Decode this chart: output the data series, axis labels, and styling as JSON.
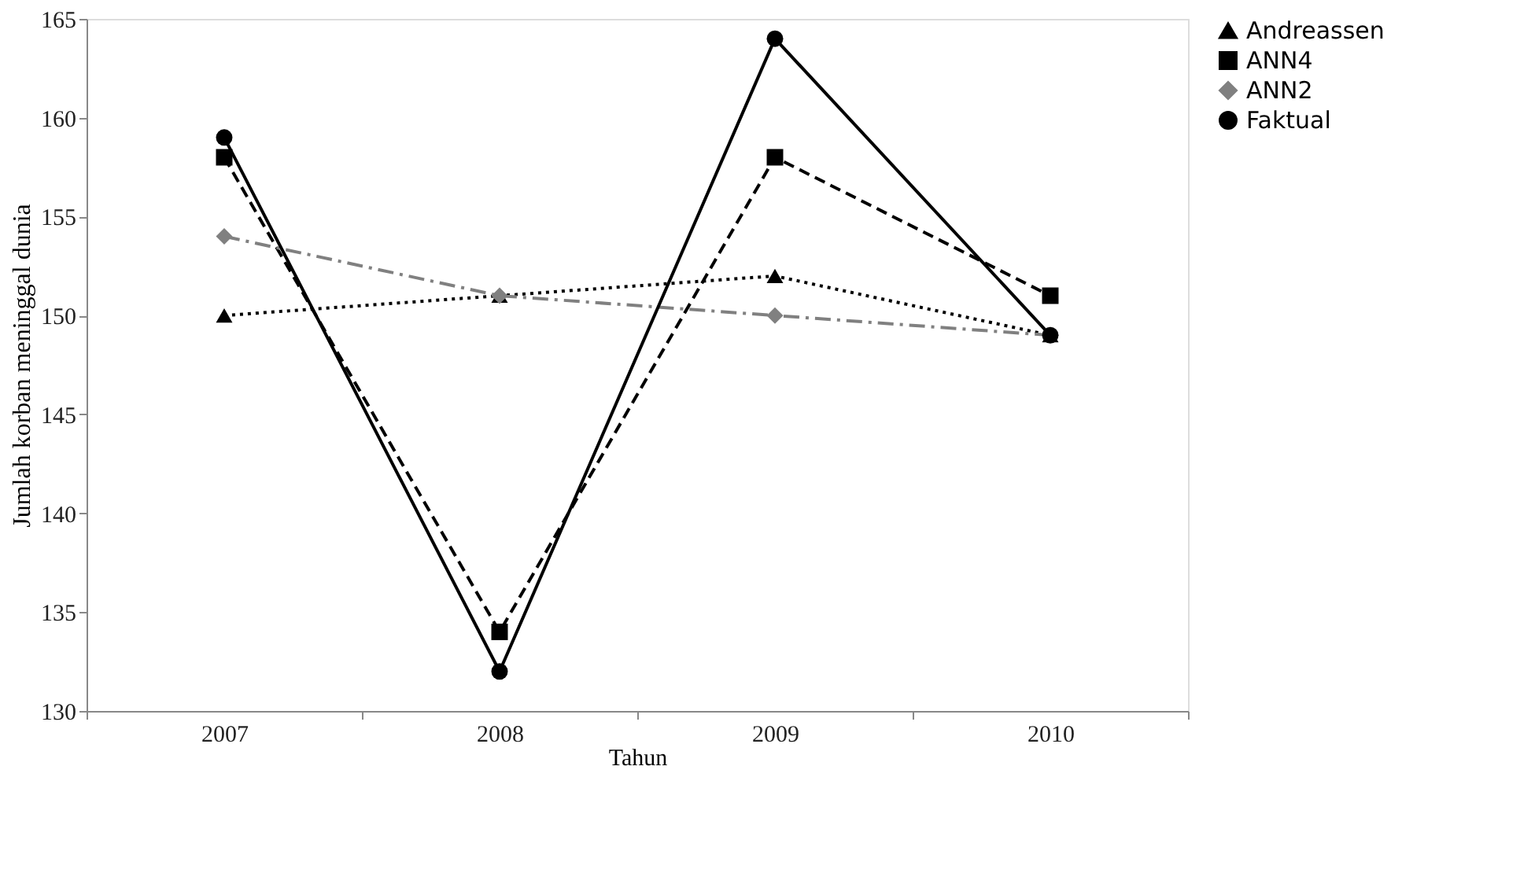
{
  "chart_data": {
    "type": "line",
    "xlabel": "Tahun",
    "ylabel": "Jumlah korban meninggal dunia",
    "categories": [
      "2007",
      "2008",
      "2009",
      "2010"
    ],
    "ylim": [
      130,
      165
    ],
    "yticks": [
      130,
      135,
      140,
      145,
      150,
      155,
      160,
      165
    ],
    "grid": false,
    "legend": "right",
    "series": [
      {
        "name": "Andreassen",
        "color": "#000000",
        "marker": "triangle",
        "line_style": "dotted",
        "values": [
          150,
          151,
          152,
          149
        ]
      },
      {
        "name": "ANN4",
        "color": "#000000",
        "marker": "square",
        "line_style": "dashed",
        "values": [
          158,
          134,
          158,
          151
        ]
      },
      {
        "name": "ANN2",
        "color": "#808080",
        "marker": "diamond",
        "line_style": "dashdot",
        "values": [
          154,
          151,
          150,
          149
        ]
      },
      {
        "name": "Faktual",
        "color": "#000000",
        "marker": "circle",
        "line_style": "solid",
        "values": [
          159,
          132,
          164,
          149
        ]
      }
    ]
  }
}
